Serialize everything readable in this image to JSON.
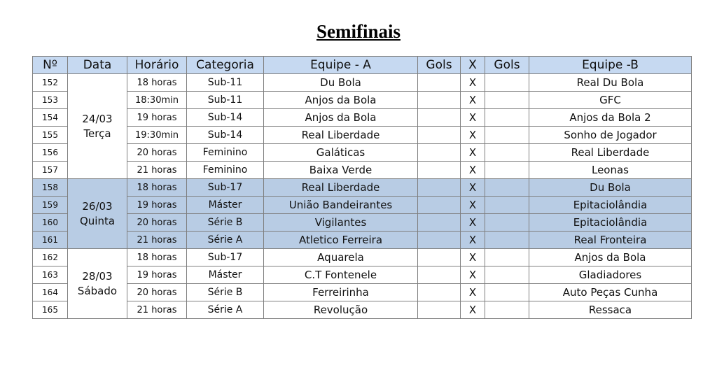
{
  "title": "Semifinais",
  "colors": {
    "header_bg": "#c6d9f1",
    "highlight_bg": "#b8cce4"
  },
  "headers": [
    "Nº",
    "Data",
    "Horário",
    "Categoria",
    "Equipe - A",
    "Gols",
    "X",
    "Gols",
    "Equipe -B"
  ],
  "groups": [
    {
      "date": "24/03",
      "day": "Terça",
      "highlight": false,
      "games": [
        {
          "num": "152",
          "time": "18 horas",
          "category": "Sub-11",
          "team_a": "Du Bola",
          "goals_a": "",
          "x": "X",
          "goals_b": "",
          "team_b": "Real Du Bola"
        },
        {
          "num": "153",
          "time": "18:30min",
          "category": "Sub-11",
          "team_a": "Anjos da Bola",
          "goals_a": "",
          "x": "X",
          "goals_b": "",
          "team_b": "GFC"
        },
        {
          "num": "154",
          "time": "19 horas",
          "category": "Sub-14",
          "team_a": "Anjos da Bola",
          "goals_a": "",
          "x": "X",
          "goals_b": "",
          "team_b": "Anjos da Bola 2"
        },
        {
          "num": "155",
          "time": "19:30min",
          "category": "Sub-14",
          "team_a": "Real Liberdade",
          "goals_a": "",
          "x": "X",
          "goals_b": "",
          "team_b": "Sonho de Jogador"
        },
        {
          "num": "156",
          "time": "20 horas",
          "category": "Feminino",
          "team_a": "Galáticas",
          "goals_a": "",
          "x": "X",
          "goals_b": "",
          "team_b": "Real Liberdade"
        },
        {
          "num": "157",
          "time": "21 horas",
          "category": "Feminino",
          "team_a": "Baixa Verde",
          "goals_a": "",
          "x": "X",
          "goals_b": "",
          "team_b": "Leonas"
        }
      ]
    },
    {
      "date": "26/03",
      "day": "Quinta",
      "highlight": true,
      "games": [
        {
          "num": "158",
          "time": "18 horas",
          "category": "Sub-17",
          "team_a": "Real Liberdade",
          "goals_a": "",
          "x": "X",
          "goals_b": "",
          "team_b": "Du Bola"
        },
        {
          "num": "159",
          "time": "19 horas",
          "category": "Máster",
          "team_a": "União Bandeirantes",
          "goals_a": "",
          "x": "X",
          "goals_b": "",
          "team_b": "Epitaciolândia"
        },
        {
          "num": "160",
          "time": "20 horas",
          "category": "Série B",
          "team_a": "Vigilantes",
          "goals_a": "",
          "x": "X",
          "goals_b": "",
          "team_b": "Epitaciolândia"
        },
        {
          "num": "161",
          "time": "21 horas",
          "category": "Série A",
          "team_a": "Atletico Ferreira",
          "goals_a": "",
          "x": "X",
          "goals_b": "",
          "team_b": "Real Fronteira"
        }
      ]
    },
    {
      "date": "28/03",
      "day": "Sábado",
      "highlight": false,
      "games": [
        {
          "num": "162",
          "time": "18 horas",
          "category": "Sub-17",
          "team_a": "Aquarela",
          "goals_a": "",
          "x": "X",
          "goals_b": "",
          "team_b": "Anjos da Bola"
        },
        {
          "num": "163",
          "time": "19 horas",
          "category": "Máster",
          "team_a": "C.T Fontenele",
          "goals_a": "",
          "x": "X",
          "goals_b": "",
          "team_b": "Gladiadores"
        },
        {
          "num": "164",
          "time": "20 horas",
          "category": "Série B",
          "team_a": "Ferreirinha",
          "goals_a": "",
          "x": "X",
          "goals_b": "",
          "team_b": "Auto Peças Cunha"
        },
        {
          "num": "165",
          "time": "21 horas",
          "category": "Série A",
          "team_a": "Revolução",
          "goals_a": "",
          "x": "X",
          "goals_b": "",
          "team_b": "Ressaca"
        }
      ]
    }
  ]
}
